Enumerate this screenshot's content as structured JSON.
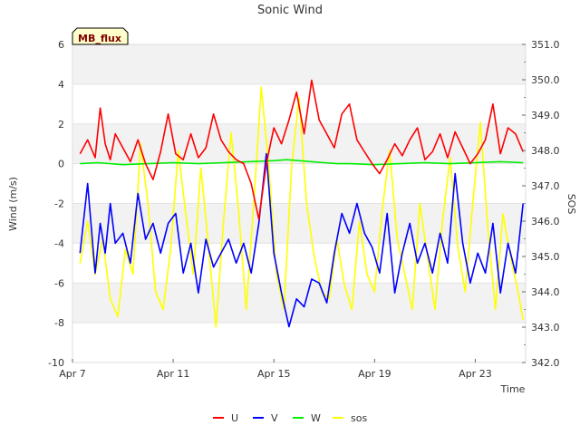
{
  "chart_data": {
    "type": "line",
    "title": "Sonic Wind",
    "badge": "MB_flux",
    "xlabel": "Time",
    "ylabel_left": "Wind (m/s)",
    "ylabel_right": "SOS",
    "x_range_days": [
      7,
      25
    ],
    "x_ticks": [
      {
        "day": 7,
        "label": "Apr 7"
      },
      {
        "day": 11,
        "label": "Apr 11"
      },
      {
        "day": 15,
        "label": "Apr 15"
      },
      {
        "day": 19,
        "label": "Apr 19"
      },
      {
        "day": 23,
        "label": "Apr 23"
      }
    ],
    "ylim_left": [
      -10,
      6
    ],
    "yticks_left": [
      -10,
      -8,
      -6,
      -4,
      -2,
      0,
      2,
      4,
      6
    ],
    "ylim_right": [
      342.0,
      351.0
    ],
    "yticks_right": [
      "342.0",
      "343.0",
      "344.0",
      "345.0",
      "346.0",
      "347.0",
      "348.0",
      "349.0",
      "350.0",
      "351.0"
    ],
    "bands_left": [
      [
        4,
        6
      ],
      [
        0,
        2
      ],
      [
        -4,
        -2
      ],
      [
        -8,
        -6
      ]
    ],
    "series": [
      {
        "name": "U",
        "axis": "left",
        "color": "#ff0000",
        "x": [
          7.3,
          7.6,
          7.9,
          8.1,
          8.3,
          8.5,
          8.7,
          9.0,
          9.3,
          9.6,
          9.9,
          10.2,
          10.5,
          10.8,
          11.1,
          11.4,
          11.7,
          12.0,
          12.3,
          12.6,
          12.9,
          13.2,
          13.5,
          13.8,
          14.1,
          14.4,
          14.7,
          15.0,
          15.3,
          15.6,
          15.9,
          16.2,
          16.5,
          16.8,
          17.1,
          17.4,
          17.7,
          18.0,
          18.3,
          18.6,
          18.9,
          19.2,
          19.5,
          19.8,
          20.1,
          20.4,
          20.7,
          21.0,
          21.3,
          21.6,
          21.9,
          22.2,
          22.5,
          22.8,
          23.1,
          23.4,
          23.7,
          24.0,
          24.3,
          24.6,
          24.9
        ],
        "values": [
          0.5,
          1.2,
          0.3,
          2.8,
          1.0,
          0.2,
          1.5,
          0.8,
          0.1,
          1.2,
          0.0,
          -0.8,
          0.6,
          2.5,
          0.5,
          0.2,
          1.5,
          0.3,
          0.8,
          2.5,
          1.2,
          0.6,
          0.2,
          0.0,
          -1.0,
          -2.8,
          0.0,
          1.8,
          1.0,
          2.2,
          3.6,
          1.5,
          4.2,
          2.2,
          1.5,
          0.8,
          2.5,
          3.0,
          1.2,
          0.6,
          0.0,
          -0.5,
          0.2,
          1.0,
          0.4,
          1.2,
          1.8,
          0.2,
          0.6,
          1.5,
          0.3,
          1.6,
          0.8,
          0.0,
          0.5,
          1.2,
          3.0,
          0.5,
          1.8,
          1.5,
          0.6
        ]
      },
      {
        "name": "V",
        "axis": "left",
        "color": "#0000ff",
        "x": [
          7.3,
          7.6,
          7.9,
          8.1,
          8.3,
          8.5,
          8.7,
          9.0,
          9.3,
          9.6,
          9.9,
          10.2,
          10.5,
          10.8,
          11.1,
          11.4,
          11.7,
          12.0,
          12.3,
          12.6,
          12.9,
          13.2,
          13.5,
          13.8,
          14.1,
          14.4,
          14.7,
          15.0,
          15.3,
          15.6,
          15.9,
          16.2,
          16.5,
          16.8,
          17.1,
          17.4,
          17.7,
          18.0,
          18.3,
          18.6,
          18.9,
          19.2,
          19.5,
          19.8,
          20.1,
          20.4,
          20.7,
          21.0,
          21.3,
          21.6,
          21.9,
          22.2,
          22.5,
          22.8,
          23.1,
          23.4,
          23.7,
          24.0,
          24.3,
          24.6,
          24.9
        ],
        "values": [
          -4.5,
          -1.0,
          -5.5,
          -3.0,
          -4.5,
          -2.0,
          -4.0,
          -3.5,
          -5.0,
          -1.5,
          -3.8,
          -3.0,
          -4.5,
          -3.0,
          -2.5,
          -5.5,
          -4.0,
          -6.5,
          -3.8,
          -5.2,
          -4.5,
          -3.8,
          -5.0,
          -4.0,
          -5.5,
          -3.0,
          0.5,
          -4.5,
          -6.5,
          -8.2,
          -6.8,
          -7.2,
          -5.8,
          -6.0,
          -7.0,
          -4.5,
          -2.5,
          -3.5,
          -2.0,
          -3.5,
          -4.2,
          -5.5,
          -2.5,
          -6.5,
          -4.5,
          -3.0,
          -5.0,
          -4.0,
          -5.5,
          -3.5,
          -5.0,
          -0.5,
          -4.0,
          -6.0,
          -4.5,
          -5.5,
          -3.0,
          -6.5,
          -4.0,
          -5.5,
          -2.0
        ]
      },
      {
        "name": "W",
        "axis": "left",
        "color": "#00ee00",
        "x": [
          7.3,
          8.0,
          9.0,
          10.0,
          11.0,
          12.0,
          13.0,
          14.0,
          15.0,
          15.5,
          16.0,
          16.5,
          17.0,
          17.5,
          18.0,
          19.0,
          20.0,
          21.0,
          22.0,
          23.0,
          24.0,
          24.9
        ],
        "values": [
          0.0,
          0.05,
          -0.05,
          0.0,
          0.05,
          0.0,
          0.05,
          0.1,
          0.15,
          0.2,
          0.15,
          0.1,
          0.05,
          0.0,
          0.0,
          -0.05,
          0.0,
          0.05,
          0.0,
          0.05,
          0.1,
          0.05
        ]
      },
      {
        "name": "sos",
        "axis": "right",
        "color": "#ffff00",
        "x": [
          7.3,
          7.6,
          7.9,
          8.2,
          8.5,
          8.8,
          9.1,
          9.4,
          9.7,
          10.0,
          10.3,
          10.6,
          10.9,
          11.2,
          11.5,
          11.8,
          12.1,
          12.4,
          12.7,
          13.0,
          13.3,
          13.6,
          13.9,
          14.2,
          14.5,
          14.8,
          15.1,
          15.4,
          15.7,
          16.0,
          16.3,
          16.6,
          16.9,
          17.2,
          17.5,
          17.8,
          18.1,
          18.4,
          18.7,
          19.0,
          19.3,
          19.6,
          19.9,
          20.2,
          20.5,
          20.8,
          21.1,
          21.4,
          21.7,
          22.0,
          22.3,
          22.6,
          22.9,
          23.2,
          23.5,
          23.8,
          24.1,
          24.4,
          24.7,
          24.9
        ],
        "values": [
          344.8,
          346.0,
          344.5,
          345.5,
          343.8,
          343.3,
          345.2,
          344.5,
          348.2,
          346.5,
          344.0,
          343.5,
          345.2,
          348.0,
          346.2,
          344.5,
          347.5,
          345.3,
          343.0,
          346.0,
          348.5,
          346.3,
          343.5,
          346.5,
          349.8,
          347.5,
          344.5,
          343.5,
          347.5,
          349.5,
          346.5,
          345.0,
          344.0,
          343.8,
          345.5,
          344.2,
          343.5,
          346.0,
          344.5,
          344.0,
          346.3,
          348.0,
          345.5,
          344.5,
          343.5,
          346.5,
          345.0,
          343.5,
          346.0,
          347.8,
          345.3,
          344.0,
          346.5,
          348.8,
          345.8,
          343.5,
          346.2,
          345.0,
          344.0,
          343.2
        ]
      }
    ],
    "legend_position": "bottom-center"
  }
}
